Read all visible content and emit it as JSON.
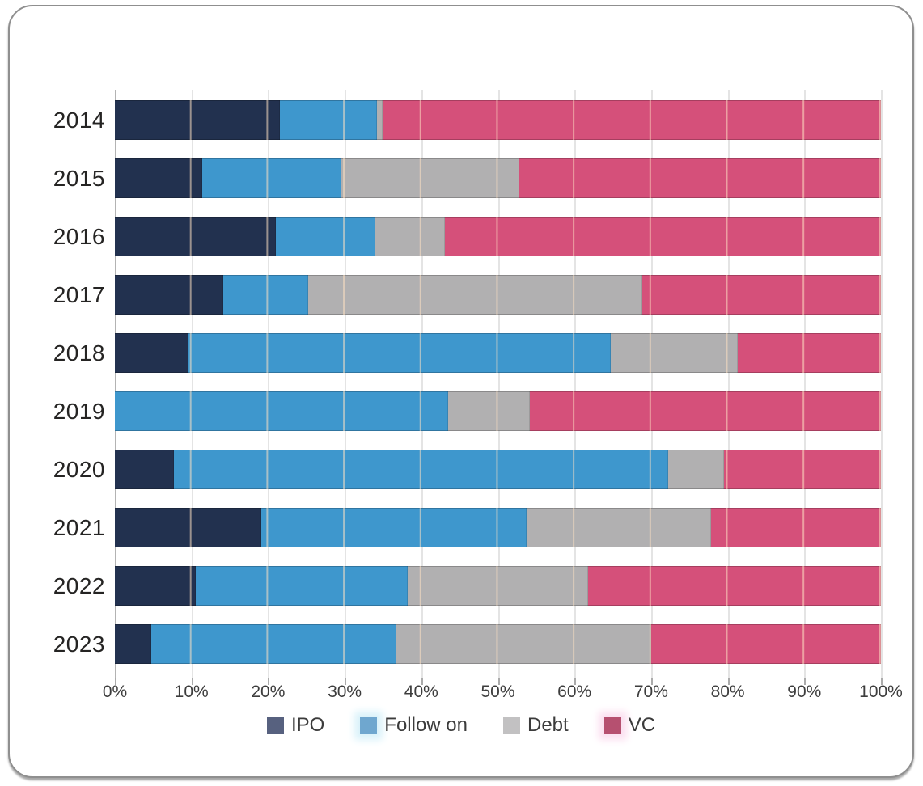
{
  "chart_data": {
    "type": "bar",
    "orientation": "horizontal-stacked",
    "title": "",
    "xlabel": "",
    "ylabel": "",
    "xlim": [
      0,
      100
    ],
    "grid": true,
    "legend_position": "bottom-center",
    "x_tick_labels": [
      "0%",
      "10%",
      "20%",
      "30%",
      "40%",
      "50%",
      "60%",
      "70%",
      "80%",
      "90%",
      "100%"
    ],
    "categories": [
      "2014",
      "2015",
      "2016",
      "2017",
      "2018",
      "2019",
      "2020",
      "2021",
      "2022",
      "2023"
    ],
    "series": [
      {
        "name": "IPO",
        "color": "#22314f",
        "values": [
          21.5,
          11.4,
          21.0,
          14.2,
          9.6,
          0.0,
          7.7,
          19.1,
          10.6,
          4.7
        ]
      },
      {
        "name": "Follow on",
        "color": "#3e97cd",
        "values": [
          12.7,
          18.2,
          13.0,
          11.0,
          55.1,
          43.5,
          64.5,
          34.7,
          27.6,
          32.1
        ]
      },
      {
        "name": "Debt",
        "color": "#b1b0b1",
        "values": [
          0.8,
          23.2,
          9.1,
          43.7,
          16.6,
          10.7,
          7.3,
          24.0,
          23.6,
          33.2
        ]
      },
      {
        "name": "VC",
        "color": "#d5507a",
        "values": [
          65.0,
          47.2,
          56.9,
          31.1,
          18.7,
          45.8,
          20.5,
          22.2,
          38.2,
          30.0
        ]
      }
    ],
    "legend": [
      {
        "label": "IPO",
        "swatch_color": "#57617f",
        "glow_color": ""
      },
      {
        "label": "Follow on",
        "swatch_color": "#6fa7cf",
        "glow_color": "#d9f2fa"
      },
      {
        "label": "Debt",
        "swatch_color": "#c2c1c2",
        "glow_color": ""
      },
      {
        "label": "VC",
        "swatch_color": "#b65070",
        "glow_color": "#fbdff0"
      }
    ],
    "style": {
      "gridline_color": "#e4e4e4",
      "axis_line_color": "#b3b3b3",
      "year_label_color": "#252423",
      "tick_label_color": "#3d3d3d"
    }
  }
}
